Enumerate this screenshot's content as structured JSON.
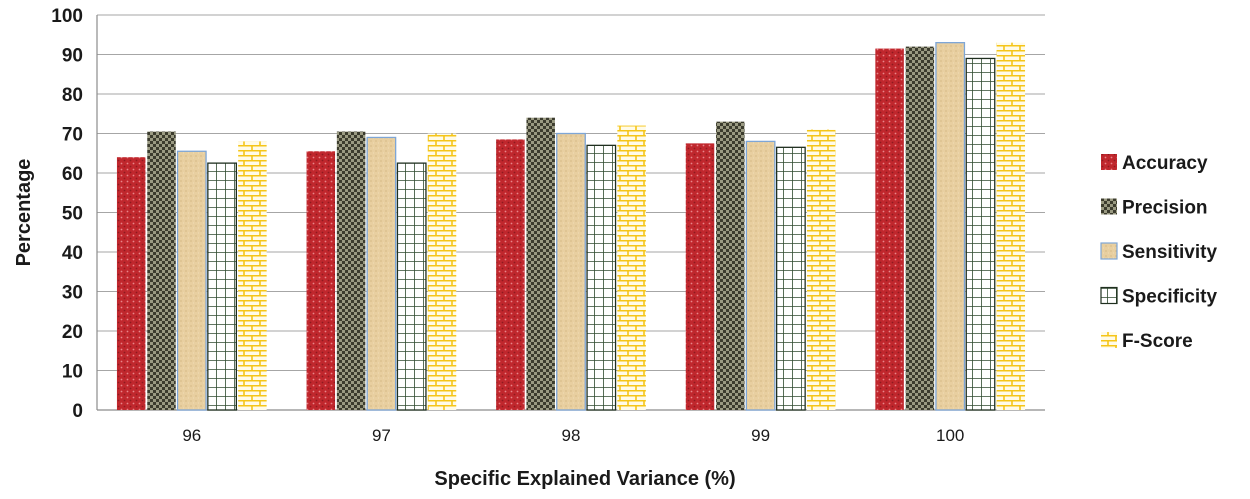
{
  "chart_data": {
    "type": "bar",
    "title": "",
    "xlabel": "Specific Explained Variance (%)",
    "ylabel": "Percentage",
    "ylim": [
      0,
      100
    ],
    "yticks": [
      0,
      10,
      20,
      30,
      40,
      50,
      60,
      70,
      80,
      90,
      100
    ],
    "grid": true,
    "legend_position": "right",
    "categories": [
      "96",
      "97",
      "98",
      "99",
      "100"
    ],
    "series": [
      {
        "name": "Accuracy",
        "color": "#c0272d",
        "pattern": "dots-red",
        "values": [
          64,
          65.5,
          68.5,
          67.5,
          91.5
        ]
      },
      {
        "name": "Precision",
        "color": "#4a4a38",
        "pattern": "checker-dark",
        "values": [
          70.5,
          70.5,
          74,
          73,
          92
        ]
      },
      {
        "name": "Sensitivity",
        "color": "#e8cfa0",
        "pattern": "sand",
        "values": [
          65.5,
          69,
          70,
          68,
          93
        ]
      },
      {
        "name": "Specificity",
        "color": "#ffffff",
        "pattern": "grid",
        "values": [
          62.5,
          62.5,
          67,
          66.5,
          89
        ]
      },
      {
        "name": "F-Score",
        "color": "#f5c518",
        "pattern": "brick-yellow",
        "values": [
          68,
          70,
          72,
          71,
          93
        ]
      }
    ]
  }
}
